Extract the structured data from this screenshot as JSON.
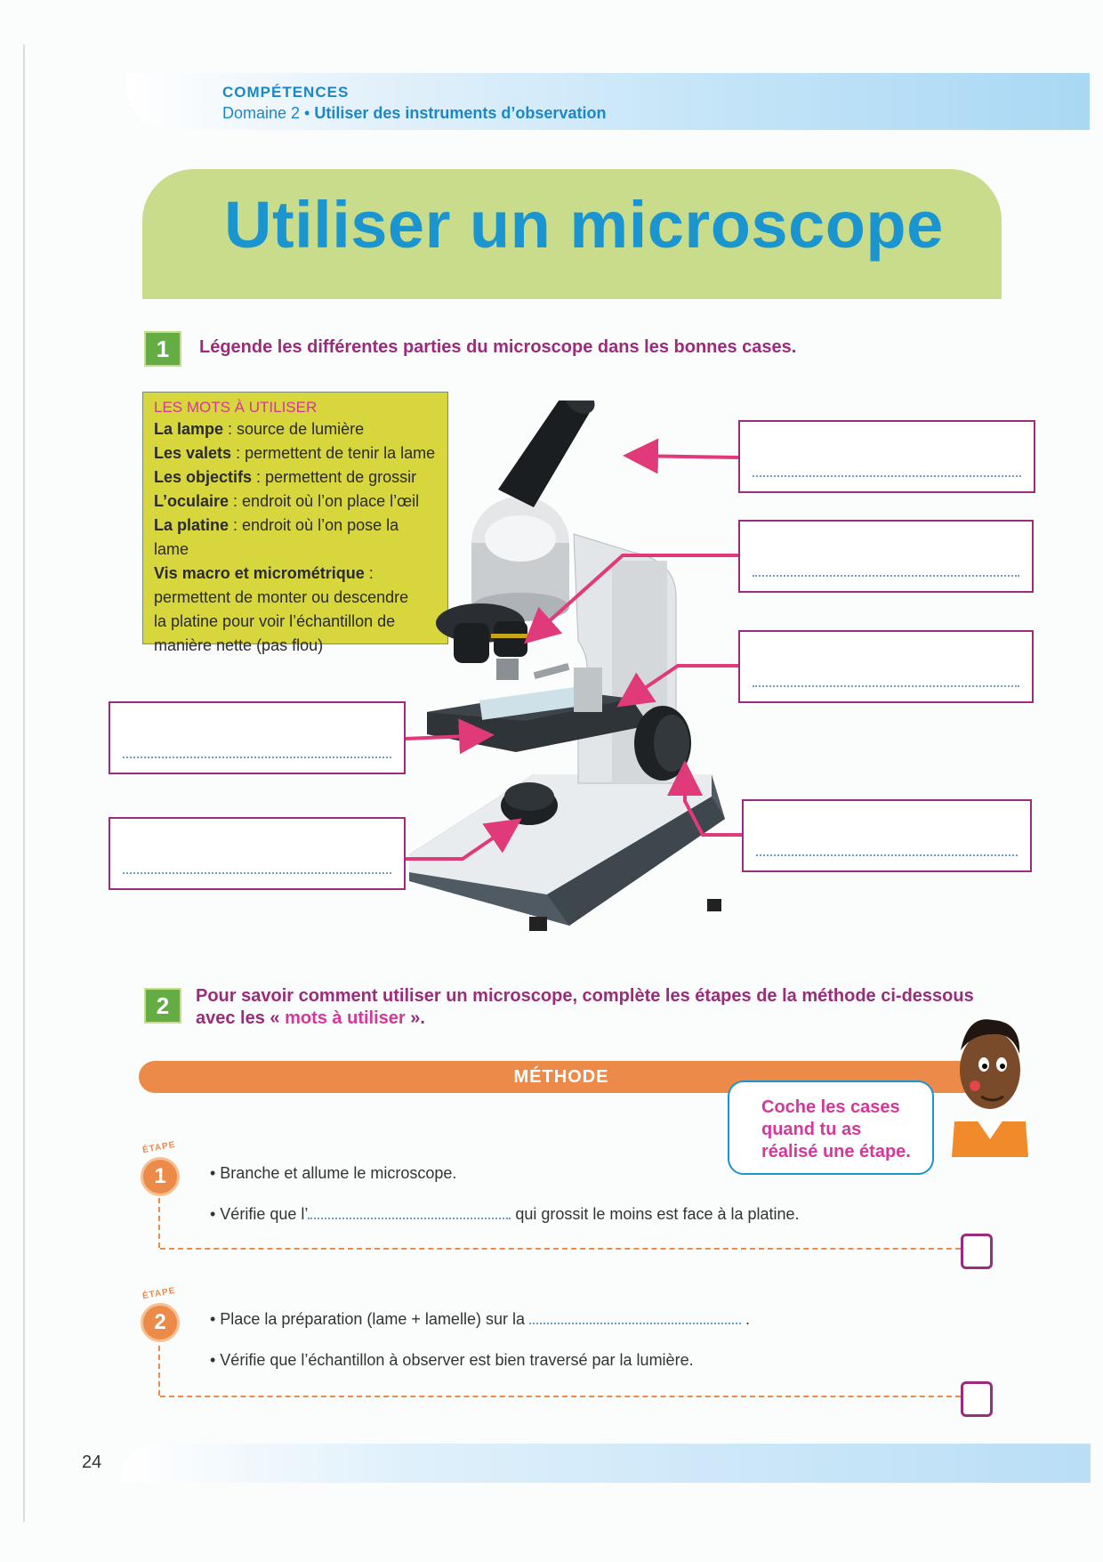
{
  "header": {
    "competences_label": "COMPÉTENCES",
    "domain_prefix": "Domaine 2 • ",
    "domain_title": "Utiliser des instruments d’observation"
  },
  "title": "Utiliser un microscope",
  "exercise1": {
    "number": "1",
    "instruction": "Légende les différentes parties du microscope dans les bonnes cases."
  },
  "words_box": {
    "header": "LES MOTS À UTILISER",
    "items": [
      {
        "term": "La lampe",
        "desc": " : source de lumière"
      },
      {
        "term": "Les valets",
        "desc": " : permettent de tenir la lame"
      },
      {
        "term": "Les objectifs",
        "desc": " : permettent de grossir"
      },
      {
        "term": "L’oculaire",
        "desc": " : endroit où l’on place l’œil"
      },
      {
        "term": "La platine",
        "desc": " : endroit où l’on pose la lame"
      },
      {
        "term": "Vis macro et micrométrique",
        "desc": " :"
      }
    ],
    "last_desc_lines": [
      "permettent de monter ou descendre",
      "la platine pour voir l’échantillon de",
      "manière nette (pas flou)"
    ]
  },
  "exercise2": {
    "number": "2",
    "instruction_line1": "Pour savoir comment utiliser un microscope, complète les étapes de la méthode ci-dessous",
    "instruction_line2_a": "avec les « ",
    "instruction_line2_b": "mots à utiliser",
    "instruction_line2_c": " »."
  },
  "methode": {
    "title": "MÉTHODE",
    "bubble_text": "Coche les cases quand tu as réalisé une étape.",
    "etape_word": "ÉTAPE",
    "steps": [
      {
        "number": "1",
        "line1": "• Branche et allume le microscope.",
        "line2_a": "• Vérifie que l’",
        "line2_b": " qui grossit le moins est face à la platine."
      },
      {
        "number": "2",
        "line1_a": "• Place la préparation (lame + lamelle) sur la ",
        "line1_b": " .",
        "line2": "• Vérifie que l’échantillon à observer est bien traversé par la lumière."
      }
    ]
  },
  "page_number": "24",
  "colors": {
    "blue": "#1a95cf",
    "green_band": "#c9dc8b",
    "purple": "#9b2b7d",
    "pink": "#d6379a",
    "orange": "#ec8a4a",
    "yellow_box": "#d7d63c"
  }
}
